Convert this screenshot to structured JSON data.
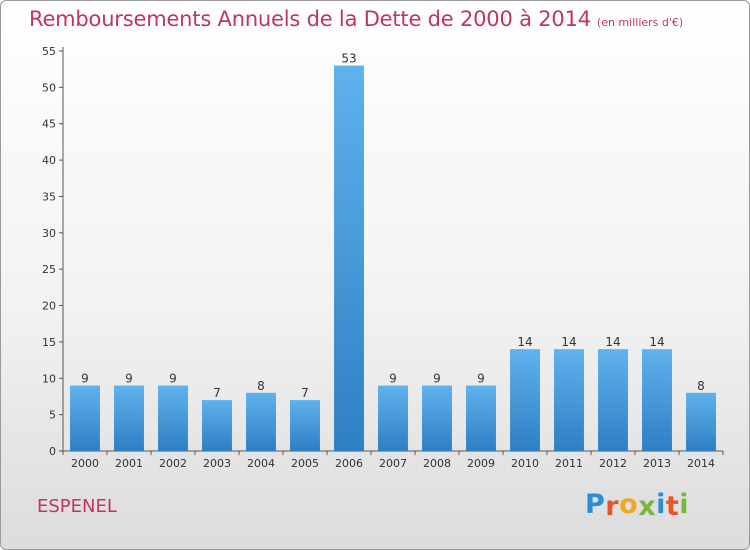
{
  "title": "Remboursements Annuels de la Dette de 2000 à 2014",
  "unit": "(en milliers d'€)",
  "commune": "ESPENEL",
  "logo": {
    "letters": [
      "P",
      "r",
      "o",
      "x",
      "i",
      "t",
      "i"
    ],
    "colors": [
      "#2e8bd6",
      "#e8542a",
      "#f0a81e",
      "#7ab83a",
      "#2e8bd6",
      "#e8542a",
      "#7ab83a"
    ]
  },
  "chart_data": {
    "type": "bar",
    "categories": [
      "2000",
      "2001",
      "2002",
      "2003",
      "2004",
      "2005",
      "2006",
      "2007",
      "2008",
      "2009",
      "2010",
      "2011",
      "2012",
      "2013",
      "2014"
    ],
    "values": [
      9,
      9,
      9,
      7,
      8,
      7,
      53,
      9,
      9,
      9,
      14,
      14,
      14,
      14,
      8
    ],
    "title": "Remboursements Annuels de la Dette de 2000 à 2014",
    "xlabel": "",
    "ylabel": "",
    "ylim": [
      0,
      55
    ],
    "yticks": [
      0,
      5,
      10,
      15,
      20,
      25,
      30,
      35,
      40,
      45,
      50,
      55
    ],
    "grid": false,
    "bar_color": "#4ea3e0"
  }
}
